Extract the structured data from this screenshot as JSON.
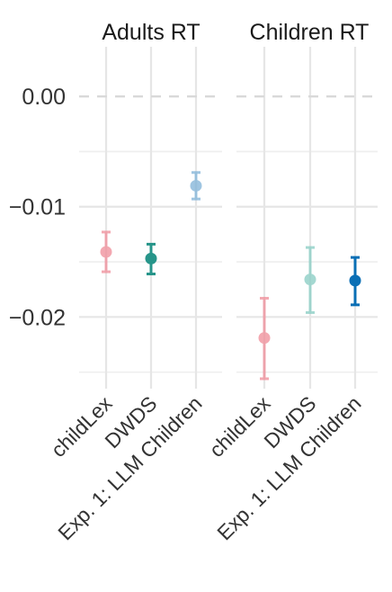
{
  "chart_data": {
    "type": "scatter",
    "subtype": "point-with-error-bars",
    "facets": [
      "Adults RT",
      "Children RT"
    ],
    "categories": [
      "childLex",
      "DWDS",
      "Exp. 1: LLM Children"
    ],
    "y_ticks": [
      0.0,
      -0.01,
      -0.02
    ],
    "y_tick_labels": [
      "0.00",
      "−0.01",
      "−0.02"
    ],
    "ylim": [
      -0.0265,
      0.0045
    ],
    "reference_line": 0.0,
    "grid": true,
    "legend": "none",
    "series": [
      {
        "facet": "Adults RT",
        "points": [
          {
            "category": "childLex",
            "y": -0.0141,
            "ymin": -0.0159,
            "ymax": -0.0123,
            "color": "#f08c98",
            "alpha": 0.75
          },
          {
            "category": "DWDS",
            "y": -0.0147,
            "ymin": -0.0161,
            "ymax": -0.0134,
            "color": "#27958a",
            "alpha": 1.0
          },
          {
            "category": "Exp. 1: LLM Children",
            "y": -0.0081,
            "ymin": -0.0093,
            "ymax": -0.0069,
            "color": "#7fb2d8",
            "alpha": 0.75
          }
        ]
      },
      {
        "facet": "Children RT",
        "points": [
          {
            "category": "childLex",
            "y": -0.0219,
            "ymin": -0.0256,
            "ymax": -0.0183,
            "color": "#f08c98",
            "alpha": 0.75
          },
          {
            "category": "DWDS",
            "y": -0.0166,
            "ymin": -0.0196,
            "ymax": -0.0137,
            "color": "#8ecfc6",
            "alpha": 0.8
          },
          {
            "category": "Exp. 1: LLM Children",
            "y": -0.0167,
            "ymin": -0.0189,
            "ymax": -0.0146,
            "color": "#0a6fb5",
            "alpha": 1.0
          }
        ]
      }
    ]
  }
}
